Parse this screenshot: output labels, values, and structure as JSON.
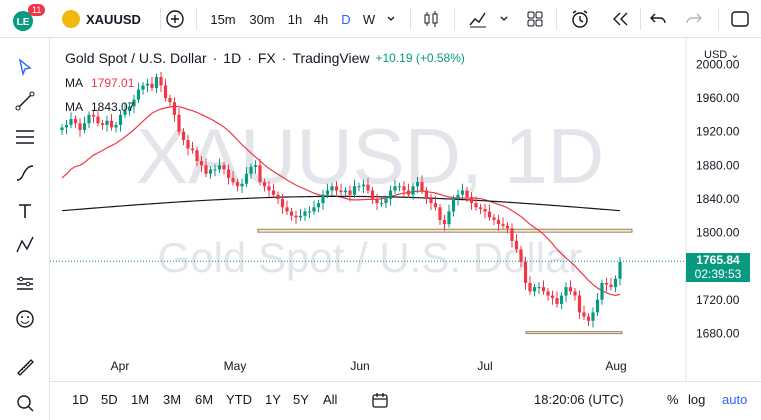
{
  "toolbar": {
    "notification_count": "11",
    "symbol": "XAUUSD",
    "intervals": [
      "15m",
      "30m",
      "1h",
      "4h",
      "D",
      "W"
    ],
    "selected_interval": "D"
  },
  "legend": {
    "title": "Gold Spot / U.S. Dollar",
    "interval": "1D",
    "exchange": "FX",
    "source": "TradingView",
    "change": "+10.19 (+0.58%)"
  },
  "indicators": [
    {
      "label": "MA",
      "value": "1797.01",
      "color": "#f23645"
    },
    {
      "label": "MA",
      "value": "1843.07",
      "color": "#131722"
    }
  ],
  "watermark": {
    "symbol": "XAUUSD, 1D",
    "name": "Gold Spot / U.S. Dollar"
  },
  "price_axis": {
    "currency": "USD",
    "ticks": [
      "2000.00",
      "1960.00",
      "1920.00",
      "1880.00",
      "1840.00",
      "1800.00",
      "1720.00",
      "1680.00"
    ]
  },
  "last_price": {
    "value": "1765.84",
    "countdown": "02:39:53",
    "color": "#089981"
  },
  "time_axis": {
    "ticks": [
      "Apr",
      "May",
      "Jun",
      "Jul",
      "Aug"
    ]
  },
  "bottom_bar": {
    "ranges": [
      "1D",
      "5D",
      "1M",
      "3M",
      "6M",
      "YTD",
      "1Y",
      "5Y",
      "All"
    ],
    "clock": "18:20:06 (UTC)",
    "percent_label": "%",
    "log_label": "log",
    "auto_label": "auto"
  },
  "colors": {
    "up": "#089981",
    "down": "#f23645",
    "accent": "#2962ff",
    "brand": "#f0b90b"
  },
  "chart_data": {
    "type": "candlestick",
    "title": "Gold Spot / U.S. Dollar",
    "xlabel": "",
    "ylabel": "",
    "x_ticks": [
      "Apr",
      "May",
      "Jun",
      "Jul",
      "Aug"
    ],
    "ylim": [
      1665,
      2010
    ],
    "close": [
      1925,
      1928,
      1935,
      1930,
      1922,
      1930,
      1940,
      1938,
      1930,
      1928,
      1933,
      1925,
      1928,
      1940,
      1945,
      1950,
      1958,
      1970,
      1975,
      1977,
      1972,
      1985,
      1975,
      1960,
      1955,
      1940,
      1920,
      1910,
      1900,
      1898,
      1885,
      1880,
      1870,
      1875,
      1875,
      1880,
      1875,
      1865,
      1860,
      1855,
      1858,
      1870,
      1878,
      1880,
      1860,
      1855,
      1850,
      1845,
      1840,
      1830,
      1825,
      1820,
      1818,
      1820,
      1825,
      1825,
      1830,
      1835,
      1845,
      1850,
      1855,
      1850,
      1848,
      1850,
      1845,
      1855,
      1855,
      1857,
      1850,
      1840,
      1835,
      1835,
      1840,
      1850,
      1855,
      1855,
      1850,
      1845,
      1855,
      1860,
      1850,
      1840,
      1835,
      1830,
      1815,
      1810,
      1825,
      1840,
      1845,
      1850,
      1842,
      1835,
      1830,
      1828,
      1825,
      1818,
      1815,
      1810,
      1808,
      1805,
      1790,
      1780,
      1765,
      1740,
      1730,
      1735,
      1735,
      1730,
      1725,
      1722,
      1715,
      1725,
      1735,
      1730,
      1725,
      1705,
      1700,
      1695,
      1705,
      1720,
      1740,
      1738,
      1735,
      1745,
      1765
    ]
  }
}
